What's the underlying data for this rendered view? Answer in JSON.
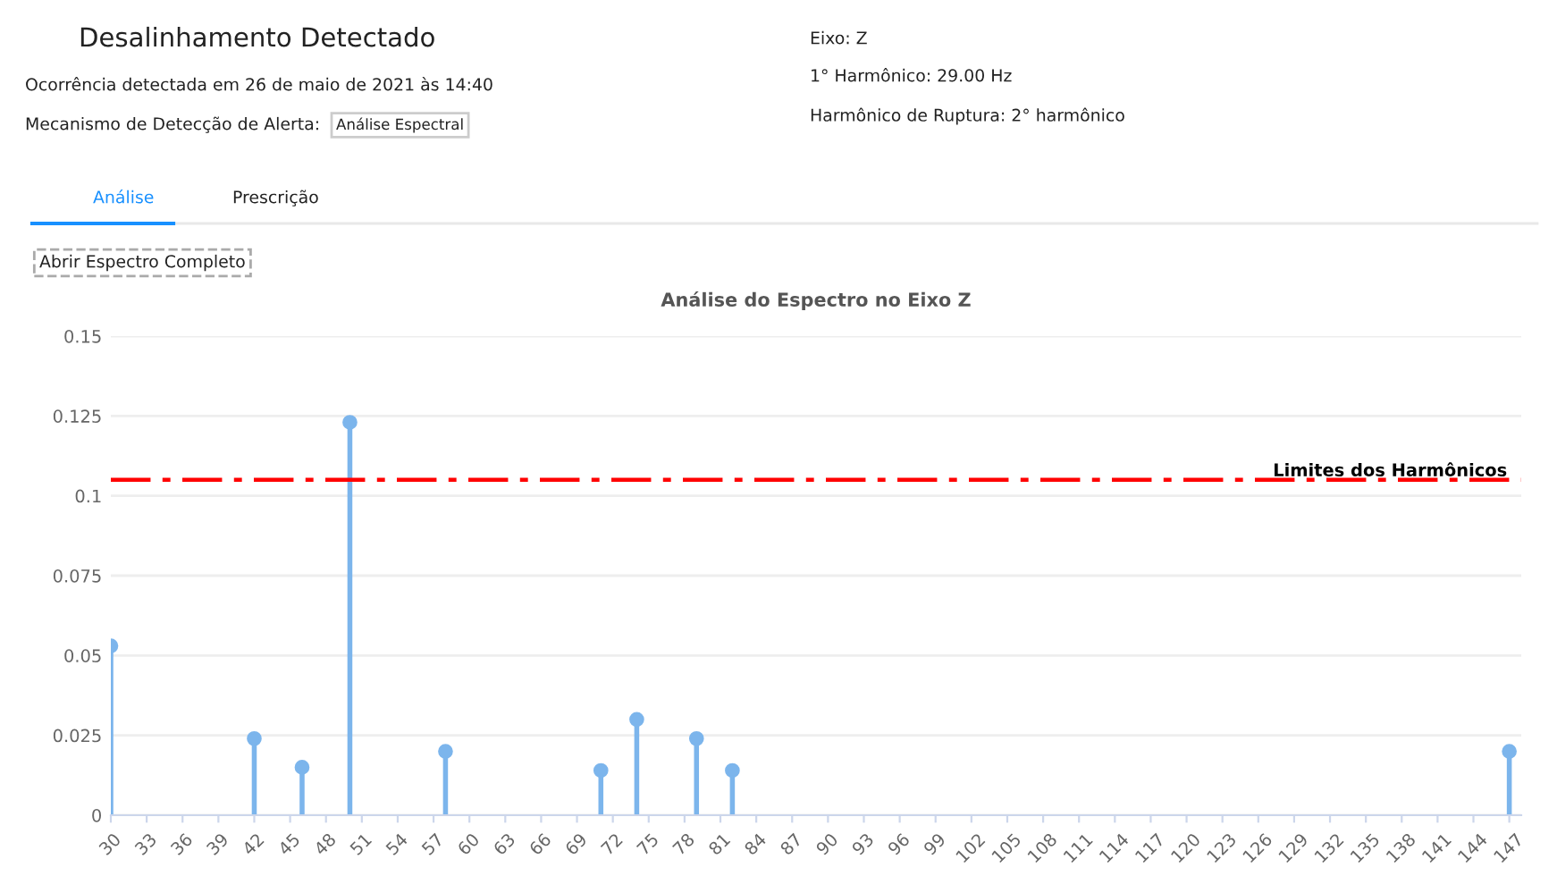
{
  "chart_data": {
    "type": "lollipop",
    "title": "Análise do Espectro no Eixo Z",
    "x": [
      30,
      42,
      46,
      50,
      58,
      71,
      74,
      79,
      82,
      147
    ],
    "series": [
      {
        "color": "#7cb5ec",
        "values": [
          0.053,
          0.024,
          0.015,
          0.123,
          0.02,
          0.014,
          0.03,
          0.024,
          0.014,
          0.02
        ]
      }
    ],
    "xlim": [
      30,
      148
    ],
    "xticks": [
      30,
      33,
      36,
      39,
      42,
      45,
      48,
      51,
      54,
      57,
      60,
      63,
      66,
      69,
      72,
      75,
      78,
      81,
      84,
      87,
      90,
      93,
      96,
      99,
      102,
      105,
      108,
      111,
      114,
      117,
      120,
      123,
      126,
      129,
      132,
      135,
      138,
      141,
      144,
      147
    ],
    "ylim": [
      0,
      0.15
    ],
    "yticks": [
      0,
      0.025,
      0.05,
      0.075,
      0.1,
      0.125,
      0.15
    ],
    "grid": "y",
    "marker": "circle",
    "ref_lines": [
      {
        "axis": "y",
        "value": 0.105,
        "label": "Limites dos Harmônicos",
        "color": "#ff0000",
        "line_style": "dashdot"
      }
    ],
    "annotations": [
      "Desalinhamento Detectado",
      "Ocorrência detectada em 26 de maio de 2021 às 14:40",
      "Mecanismo de Detecção de Alerta:",
      "Análise Espectral",
      "Eixo: Z",
      "1° Harmônico: 29.00 Hz",
      "Harmônico de Ruptura: 2° harmônico",
      "Análise",
      "Prescrição",
      "Abrir Espectro Completo"
    ]
  }
}
